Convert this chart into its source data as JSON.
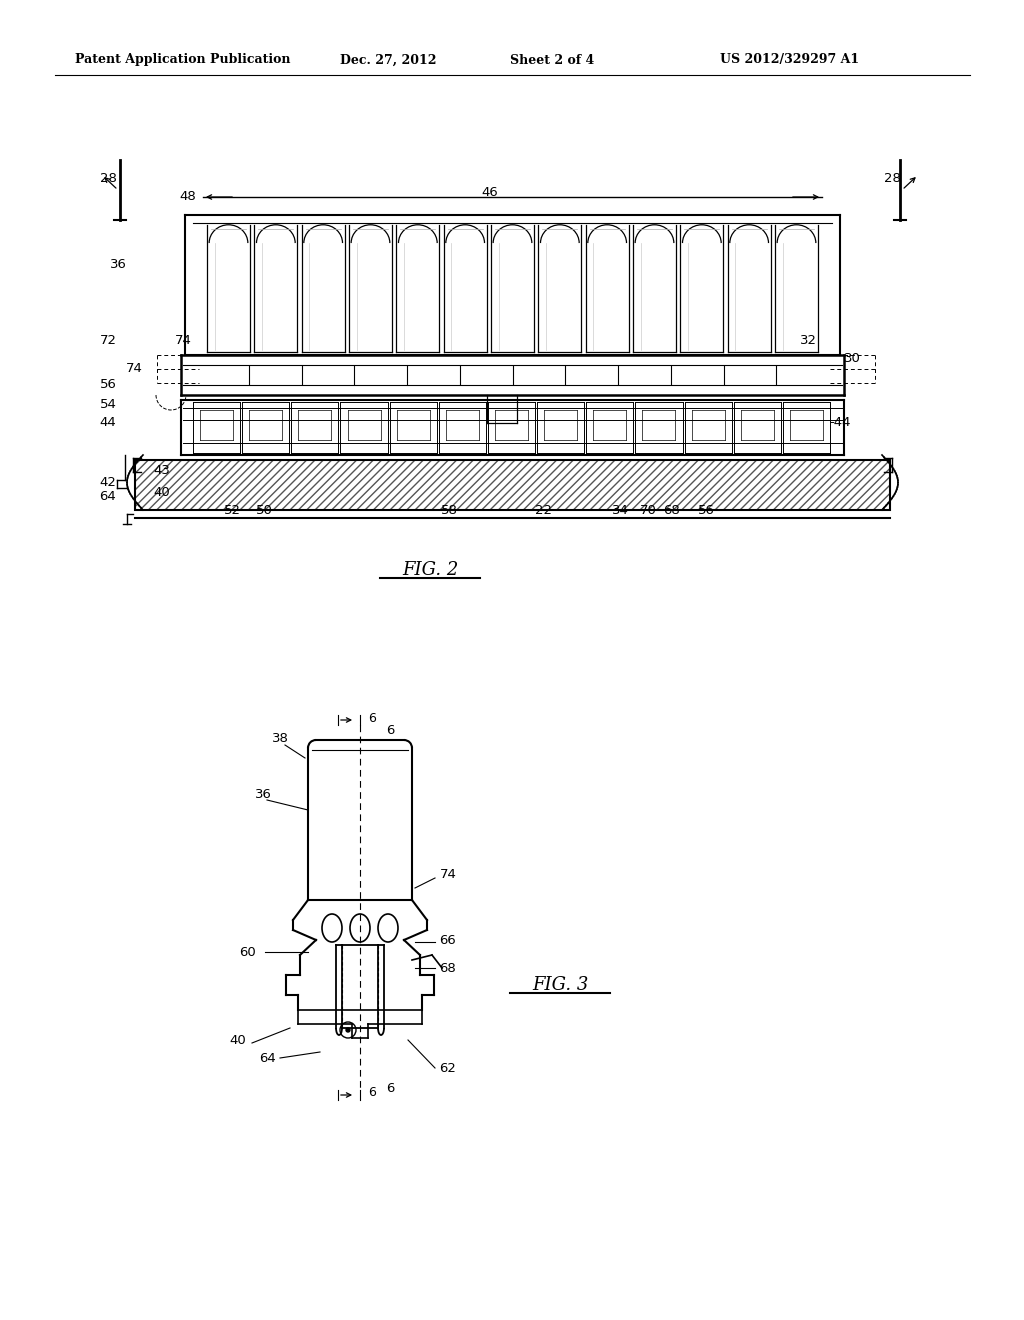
{
  "bg_color": "#ffffff",
  "line_color": "#000000",
  "header_text": "Patent Application Publication",
  "header_date": "Dec. 27, 2012",
  "header_sheet": "Sheet 2 of 4",
  "header_patent": "US 2012/329297 A1",
  "fig2_label": "FIG. 2",
  "fig3_label": "FIG. 3"
}
